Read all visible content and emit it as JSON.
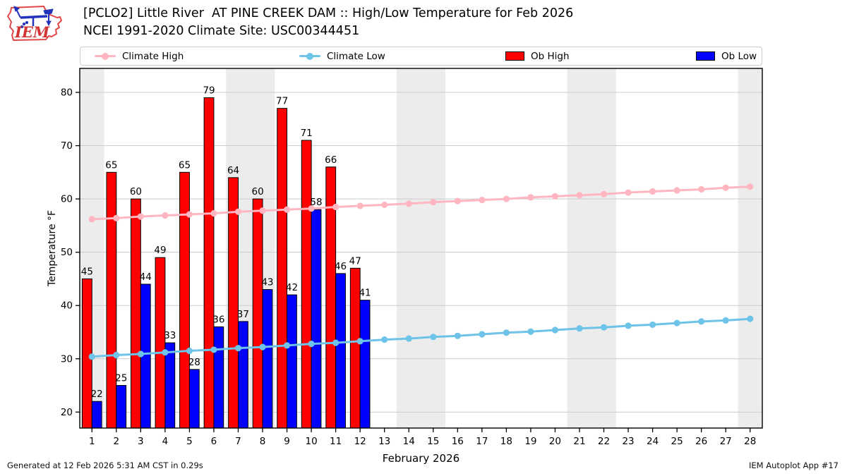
{
  "header": {
    "title": "[PCLO2] Little River  AT PINE CREEK DAM :: High/Low Temperature for Feb 2026",
    "subtitle": "NCEI 1991-2020 Climate Site: USC00344451",
    "logo_text": "IEM"
  },
  "legend": {
    "items": [
      {
        "label": "Climate High",
        "marker": "line-dot",
        "color": "#ffb6c1"
      },
      {
        "label": "Climate Low",
        "marker": "line-dot",
        "color": "#6ec4e8"
      },
      {
        "label": "Ob High",
        "marker": "rect",
        "color": "#ff0000"
      },
      {
        "label": "Ob Low",
        "marker": "rect",
        "color": "#0000ff"
      }
    ]
  },
  "chart_data": {
    "type": "bar",
    "title": "[PCLO2] Little River AT PINE CREEK DAM :: High/Low Temperature for Feb 2026",
    "xlabel": "February 2026",
    "ylabel": "Temperature °F",
    "x": [
      1,
      2,
      3,
      4,
      5,
      6,
      7,
      8,
      9,
      10,
      11,
      12,
      13,
      14,
      15,
      16,
      17,
      18,
      19,
      20,
      21,
      22,
      23,
      24,
      25,
      26,
      27,
      28
    ],
    "xlim": [
      0.5,
      28.5
    ],
    "ylim": [
      17,
      84.5
    ],
    "yticks": [
      20,
      30,
      40,
      50,
      60,
      70,
      80
    ],
    "grid": true,
    "legend_position": "top",
    "weekend_bands": [
      [
        0.5,
        1.5
      ],
      [
        6.5,
        8.5
      ],
      [
        13.5,
        15.5
      ],
      [
        20.5,
        22.5
      ],
      [
        27.5,
        28.5
      ]
    ],
    "series": [
      {
        "name": "Ob High",
        "type": "bar",
        "color": "#ff0000",
        "values": [
          45,
          65,
          60,
          49,
          65,
          79,
          64,
          60,
          77,
          71,
          66,
          47
        ]
      },
      {
        "name": "Ob Low",
        "type": "bar",
        "color": "#0000ff",
        "values": [
          22,
          25,
          44,
          33,
          28,
          36,
          37,
          43,
          42,
          58,
          46,
          41
        ]
      },
      {
        "name": "Climate High",
        "type": "line",
        "color": "#ffb6c1",
        "values": [
          56.2,
          56.4,
          56.7,
          56.9,
          57.1,
          57.3,
          57.6,
          57.8,
          58.0,
          58.2,
          58.5,
          58.7,
          58.9,
          59.1,
          59.4,
          59.6,
          59.8,
          60.0,
          60.3,
          60.5,
          60.7,
          60.9,
          61.2,
          61.4,
          61.6,
          61.8,
          62.1,
          62.3
        ]
      },
      {
        "name": "Climate Low",
        "type": "line",
        "color": "#6ec4e8",
        "values": [
          30.4,
          30.7,
          30.9,
          31.2,
          31.5,
          31.7,
          32.0,
          32.2,
          32.5,
          32.8,
          33.0,
          33.3,
          33.6,
          33.8,
          34.1,
          34.3,
          34.6,
          34.9,
          35.1,
          35.4,
          35.7,
          35.9,
          36.2,
          36.4,
          36.7,
          37.0,
          37.2,
          37.5
        ]
      }
    ],
    "bar_labels_high": [
      "45",
      "65",
      "60",
      "49",
      "65",
      "79",
      "64",
      "60",
      "77",
      "71",
      "66",
      "47"
    ],
    "bar_labels_low": [
      "22",
      "25",
      "44",
      "33",
      "28",
      "36",
      "37",
      "43",
      "42",
      "58",
      "46",
      "41"
    ]
  },
  "colors": {
    "weekend_band": "#ececec",
    "gridline": "#cccccc",
    "axis": "#000000",
    "bar_edge": "#000000"
  },
  "footer": {
    "left": "Generated at 12 Feb 2026 5:31 AM CST in 0.29s",
    "right": "IEM Autoplot App #17"
  }
}
